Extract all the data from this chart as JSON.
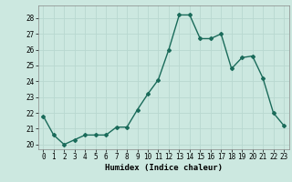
{
  "x": [
    0,
    1,
    2,
    3,
    4,
    5,
    6,
    7,
    8,
    9,
    10,
    11,
    12,
    13,
    14,
    15,
    16,
    17,
    18,
    19,
    20,
    21,
    22,
    23
  ],
  "y": [
    21.8,
    20.6,
    20.0,
    20.3,
    20.6,
    20.6,
    20.6,
    21.1,
    21.1,
    22.2,
    23.2,
    24.1,
    26.0,
    28.2,
    28.2,
    26.7,
    26.7,
    27.0,
    24.8,
    25.5,
    25.6,
    24.2,
    22.0,
    21.2
  ],
  "title": "",
  "xlabel": "Humidex (Indice chaleur)",
  "ylabel": "",
  "yticks": [
    20,
    21,
    22,
    23,
    24,
    25,
    26,
    27,
    28
  ],
  "xticks": [
    0,
    1,
    2,
    3,
    4,
    5,
    6,
    7,
    8,
    9,
    10,
    11,
    12,
    13,
    14,
    15,
    16,
    17,
    18,
    19,
    20,
    21,
    22,
    23
  ],
  "line_color": "#1a6b5a",
  "marker": "D",
  "marker_size": 2.0,
  "bg_color": "#cce8e0",
  "grid_color": "#b8d8d0",
  "font_family": "monospace"
}
